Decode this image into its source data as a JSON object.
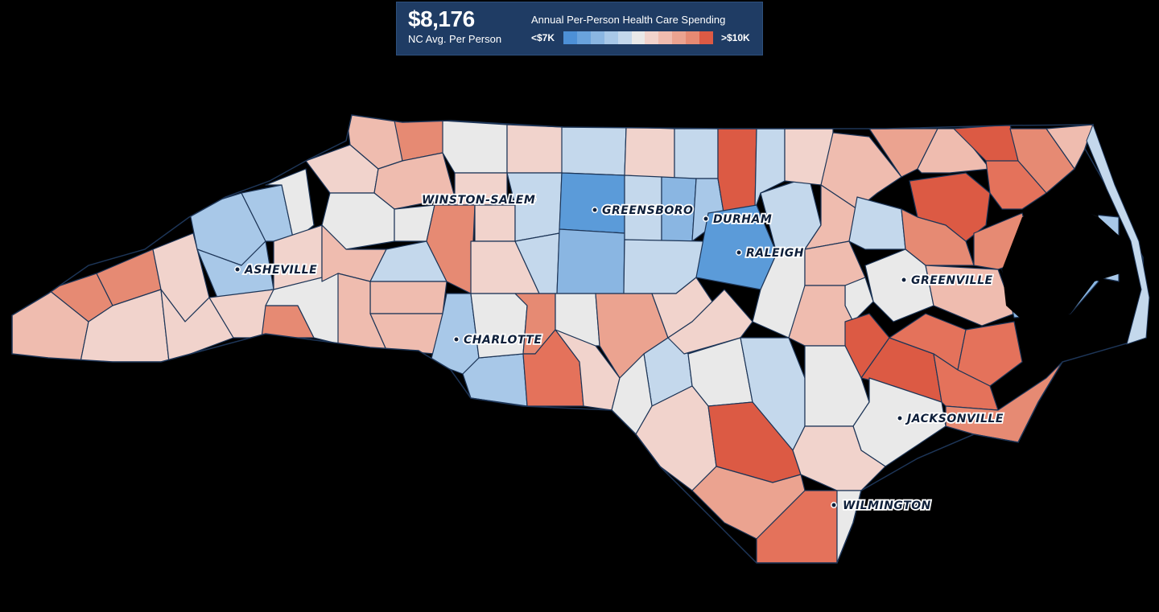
{
  "header": {
    "avg_value": "$8,176",
    "avg_label": "NC Avg. Per Person",
    "legend_title": "Annual Per-Person Health Care Spending",
    "legend_min": "<$7K",
    "legend_max": ">$10K",
    "legend_colors": [
      "#4d90d6",
      "#6aa3dc",
      "#8ab6e2",
      "#a8c8e8",
      "#c4d8ec",
      "#e9e9e9",
      "#f1d3cc",
      "#efbcaf",
      "#eba390",
      "#e68a73",
      "#dc5a44"
    ]
  },
  "cities": [
    {
      "name": "WINSTON-SALEM"
    },
    {
      "name": "GREENSBORO"
    },
    {
      "name": "DURHAM"
    },
    {
      "name": "RALEIGH"
    },
    {
      "name": "ASHEVILLE"
    },
    {
      "name": "GREENVILLE"
    },
    {
      "name": "CHARLOTTE"
    },
    {
      "name": "JACKSONVILLE"
    },
    {
      "name": "WILMINGTON"
    }
  ]
}
